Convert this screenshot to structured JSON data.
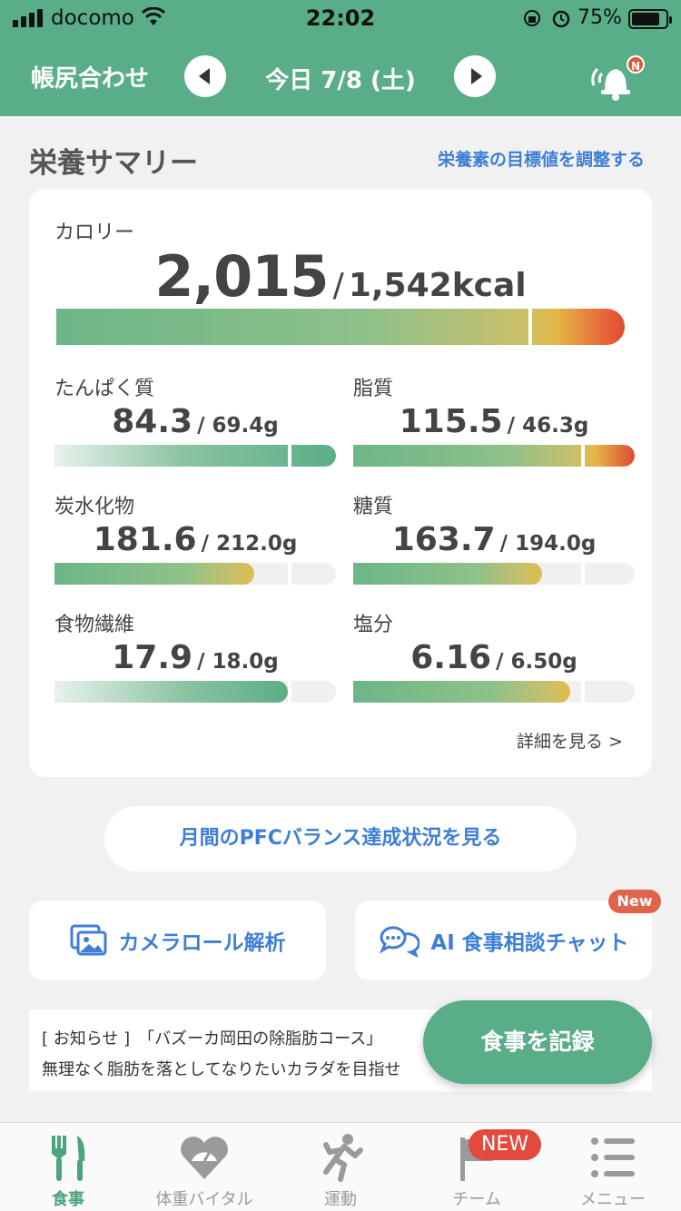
{
  "status_bar": {
    "carrier": "docomo",
    "time": "22:02",
    "battery": "75%"
  },
  "header": {
    "title": "帳尻合わせ",
    "date": "今日 7/8 (土)",
    "bell_badge": "N"
  },
  "summary": {
    "title": "栄養サマリー",
    "adjust_link": "栄養素の目標値を調整する",
    "calorie": {
      "label": "カロリー",
      "value": "2,015",
      "goal": "1,542kcal",
      "separator": "/"
    },
    "nutrients": [
      {
        "label": "たんぱく質",
        "value": "84.3",
        "goal": "/ 69.4g",
        "fill": 1.0,
        "goal_mark": 0.83,
        "style": "green-full"
      },
      {
        "label": "脂質",
        "value": "115.5",
        "goal": "/ 46.3g",
        "fill": 1.0,
        "goal_mark": 0.81,
        "style": "green-red"
      },
      {
        "label": "炭水化物",
        "value": "181.6",
        "goal": "/ 212.0g",
        "fill": 0.71,
        "goal_mark": 0.83,
        "style": "green-yellow"
      },
      {
        "label": "糖質",
        "value": "163.7",
        "goal": "/ 194.0g",
        "fill": 0.67,
        "goal_mark": 0.81,
        "style": "green-yellow"
      },
      {
        "label": "食物繊維",
        "value": "17.9",
        "goal": "/ 18.0g",
        "fill": 0.83,
        "goal_mark": 0.83,
        "style": "green-fade"
      },
      {
        "label": "塩分",
        "value": "6.16",
        "goal": "/ 6.50g",
        "fill": 0.77,
        "goal_mark": 0.81,
        "style": "green-yellow"
      }
    ],
    "more_link": "詳細を見る >"
  },
  "pfc_button": "月間のPFCバランス達成状況を見る",
  "actions": {
    "camera_roll": "カメラロール解析",
    "ai_chat": "AI 食事相談チャット",
    "ai_chat_badge": "New"
  },
  "notice": {
    "line1": "[ お知らせ ]　「バズーカ岡田の除脂肪コース」",
    "line2": "無理なく脂肪を落としてなりたいカラダを目指せ"
  },
  "fab_label": "食事を記録",
  "tabs": [
    {
      "label": "食事",
      "icon": "fork-knife-icon",
      "active": true
    },
    {
      "label": "体重バイタル",
      "icon": "heart-scale-icon",
      "active": false
    },
    {
      "label": "運動",
      "icon": "runner-icon",
      "active": false
    },
    {
      "label": "チーム",
      "icon": "flag-icon",
      "active": false
    },
    {
      "label": "メニュー",
      "icon": "menu-list-icon",
      "active": false
    }
  ],
  "team_badge": "NEW",
  "colors": {
    "brand_green": "#5aae87",
    "link_blue": "#3d7fd6",
    "alert_red": "#e24a3d"
  }
}
